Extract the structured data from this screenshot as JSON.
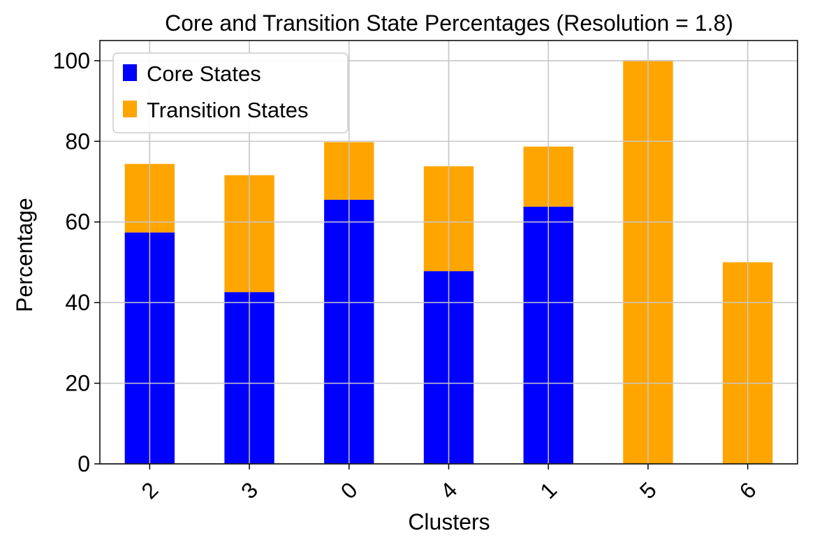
{
  "chart_data": {
    "type": "bar",
    "stacked": true,
    "title": "Core and Transition State Percentages (Resolution = 1.8)",
    "xlabel": "Clusters",
    "ylabel": "Percentage",
    "ylim": [
      0,
      105
    ],
    "yticks": [
      0,
      20,
      40,
      60,
      80,
      100
    ],
    "categories": [
      "2",
      "3",
      "0",
      "4",
      "1",
      "5",
      "6"
    ],
    "xtick_rotation": "45°",
    "grid": true,
    "legend_position": "top-left",
    "series": [
      {
        "name": "Core States",
        "color": "#0000ff",
        "values": [
          57.4,
          42.6,
          65.5,
          47.8,
          63.8,
          0,
          0
        ]
      },
      {
        "name": "Transition States",
        "color": "#ffa500",
        "values": [
          17.0,
          29.0,
          14.3,
          26.0,
          14.9,
          100,
          50
        ]
      }
    ]
  }
}
